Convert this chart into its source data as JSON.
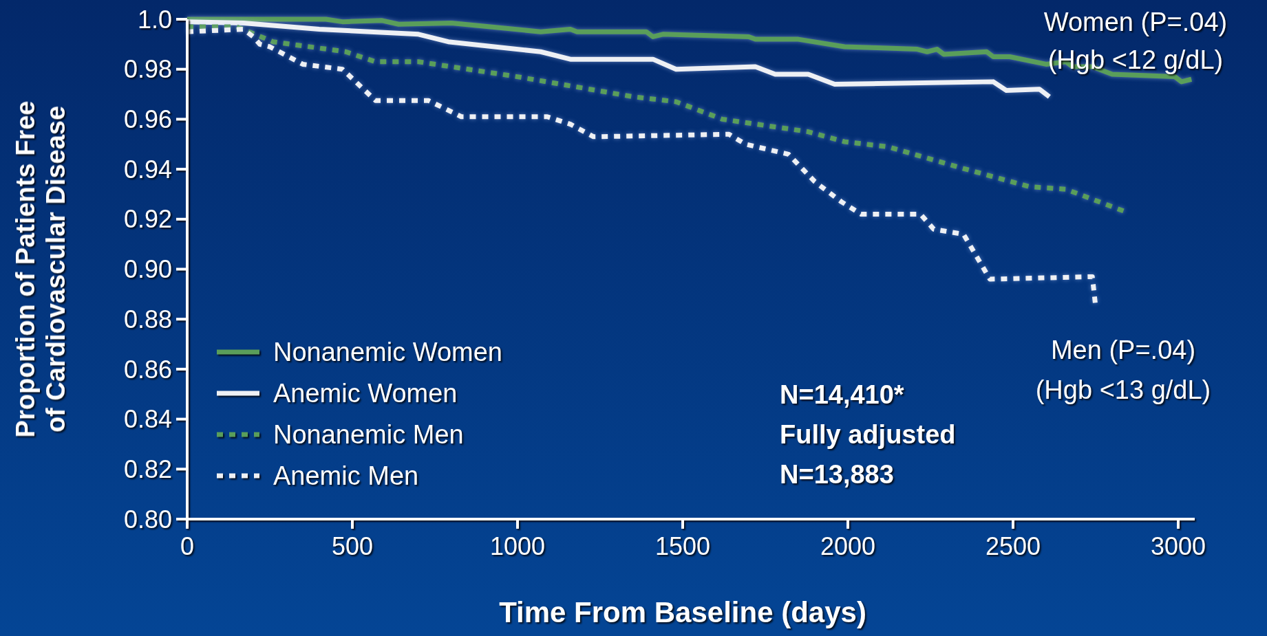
{
  "chart_data": {
    "type": "step",
    "xlabel": "Time From Baseline (days)",
    "ylabel": "Proportion of Patients Free\nof Cardiovascular Disease",
    "xlim": [
      0,
      3050
    ],
    "xticks": [
      0,
      500,
      1000,
      1500,
      2000,
      2500,
      3000
    ],
    "ylim": [
      0.8,
      1.0
    ],
    "yticks": [
      {
        "value": 0.8,
        "label": "0.80"
      },
      {
        "value": 0.82,
        "label": "0.82"
      },
      {
        "value": 0.84,
        "label": "0.84"
      },
      {
        "value": 0.86,
        "label": "0.86"
      },
      {
        "value": 0.88,
        "label": "0.88"
      },
      {
        "value": 0.9,
        "label": "0.90"
      },
      {
        "value": 0.92,
        "label": "0.92"
      },
      {
        "value": 0.94,
        "label": "0.94"
      },
      {
        "value": 0.96,
        "label": "0.96"
      },
      {
        "value": 0.98,
        "label": "0.98"
      },
      {
        "value": 1.0,
        "label": "1.0"
      }
    ],
    "legend": "bottom left",
    "grid": false,
    "series": [
      {
        "name": "Nonanemic Women",
        "color": "#5a9e5a",
        "line_style": "solid",
        "x": [
          0,
          420,
          470,
          590,
          640,
          800,
          1070,
          1160,
          1180,
          1390,
          1410,
          1440,
          1700,
          1720,
          1850,
          1990,
          2210,
          2240,
          2270,
          2290,
          2420,
          2440,
          2490,
          2600,
          2660,
          2680,
          2740,
          2800,
          2990,
          3010,
          3040
        ],
        "values": [
          1.0,
          1.0,
          0.999,
          0.9995,
          0.998,
          0.9985,
          0.995,
          0.996,
          0.995,
          0.995,
          0.993,
          0.994,
          0.993,
          0.992,
          0.992,
          0.989,
          0.988,
          0.987,
          0.988,
          0.986,
          0.987,
          0.985,
          0.985,
          0.982,
          0.983,
          0.981,
          0.981,
          0.978,
          0.977,
          0.975,
          0.976
        ]
      },
      {
        "name": "Anemic Women",
        "color": "#eef0f4",
        "line_style": "solid",
        "x": [
          0,
          170,
          400,
          700,
          790,
          1070,
          1160,
          1410,
          1480,
          1720,
          1780,
          1880,
          1960,
          2440,
          2480,
          2580,
          2610
        ],
        "values": [
          0.999,
          0.9985,
          0.996,
          0.994,
          0.991,
          0.987,
          0.984,
          0.984,
          0.98,
          0.981,
          0.978,
          0.978,
          0.974,
          0.975,
          0.9715,
          0.972,
          0.969
        ]
      },
      {
        "name": "Nonanemic Men",
        "color": "#5a9e5a",
        "line_style": "dotted",
        "x": [
          0,
          150,
          260,
          480,
          570,
          700,
          1000,
          1350,
          1480,
          1620,
          1880,
          1990,
          2120,
          2330,
          2550,
          2660,
          2740,
          2840
        ],
        "values": [
          0.997,
          0.997,
          0.991,
          0.987,
          0.983,
          0.983,
          0.977,
          0.969,
          0.967,
          0.96,
          0.955,
          0.951,
          0.949,
          0.941,
          0.933,
          0.932,
          0.928,
          0.923
        ]
      },
      {
        "name": "Anemic Men",
        "color": "#eef0f4",
        "line_style": "dotted",
        "x": [
          0,
          170,
          200,
          220,
          250,
          350,
          470,
          570,
          730,
          830,
          1090,
          1160,
          1230,
          1640,
          1690,
          1820,
          1900,
          1980,
          2040,
          2220,
          2260,
          2350,
          2430,
          2740,
          2750
        ],
        "values": [
          0.995,
          0.996,
          0.993,
          0.99,
          0.989,
          0.982,
          0.98,
          0.9675,
          0.9675,
          0.961,
          0.961,
          0.958,
          0.953,
          0.954,
          0.95,
          0.946,
          0.935,
          0.927,
          0.922,
          0.922,
          0.916,
          0.914,
          0.896,
          0.897,
          0.885
        ]
      }
    ],
    "annotations": [
      "Women (P=.04)",
      "(Hgb <12 g/dL)",
      "Men (P=.04)",
      "(Hgb <13 g/dL)",
      "N=14,410*",
      "Fully adjusted",
      "N=13,883"
    ]
  }
}
